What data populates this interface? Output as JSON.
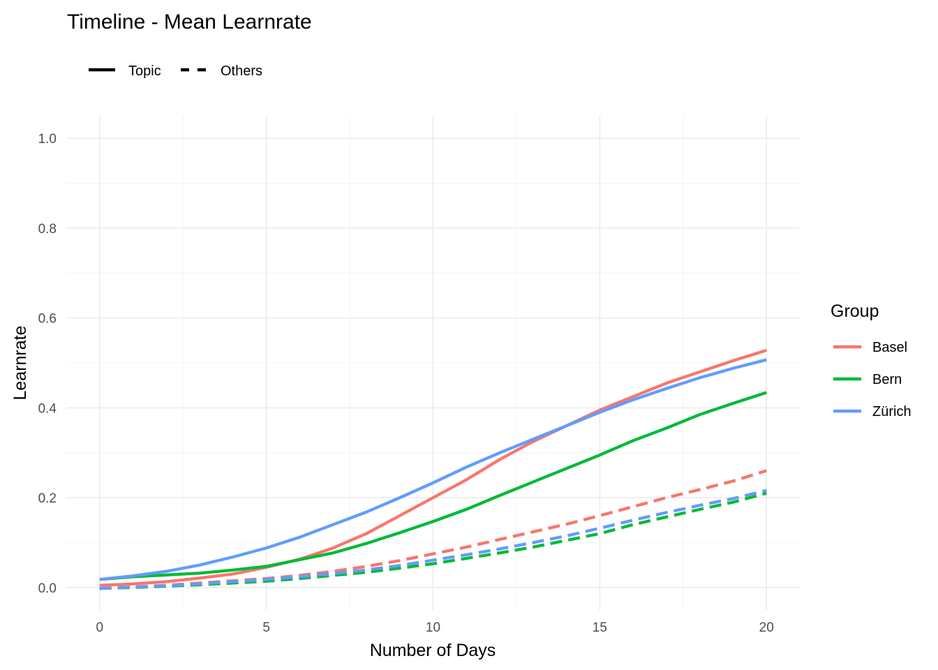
{
  "chart_data": {
    "type": "line",
    "title": "Timeline - Mean Learnrate",
    "xlabel": "Number of Days",
    "ylabel": "Learnrate",
    "xlim": [
      -1,
      21
    ],
    "ylim": [
      -0.05,
      1.05
    ],
    "x_ticks": [
      0,
      5,
      10,
      15,
      20
    ],
    "x_tick_labels": [
      "0",
      "5",
      "10",
      "15",
      "20"
    ],
    "y_ticks": [
      0.0,
      0.2,
      0.4,
      0.6,
      0.8,
      1.0
    ],
    "y_tick_labels": [
      "0.0",
      "0.2",
      "0.4",
      "0.6",
      "0.8",
      "1.0"
    ],
    "grid": true,
    "linetype_legend": {
      "position": "top-left",
      "entries": [
        {
          "label": "Topic",
          "dash": "solid"
        },
        {
          "label": "Others",
          "dash": "dashed"
        }
      ]
    },
    "color_legend": {
      "title": "Group",
      "position": "right",
      "entries": [
        {
          "label": "Basel",
          "color": "#F8766D"
        },
        {
          "label": "Bern",
          "color": "#00BA38"
        },
        {
          "label": "Zürich",
          "color": "#619CFF"
        }
      ]
    },
    "x": [
      0,
      1,
      2,
      3,
      4,
      5,
      6,
      7,
      8,
      9,
      10,
      11,
      12,
      13,
      14,
      15,
      16,
      17,
      18,
      19,
      20
    ],
    "series": [
      {
        "group": "Basel",
        "type": "Topic",
        "color": "#F8766D",
        "dash": "solid",
        "values": [
          0.005,
          0.008,
          0.013,
          0.021,
          0.03,
          0.045,
          0.063,
          0.088,
          0.12,
          0.16,
          0.2,
          0.24,
          0.285,
          0.325,
          0.36,
          0.395,
          0.425,
          0.455,
          0.48,
          0.505,
          0.528
        ]
      },
      {
        "group": "Bern",
        "type": "Topic",
        "color": "#00BA38",
        "dash": "solid",
        "values": [
          0.018,
          0.024,
          0.028,
          0.032,
          0.039,
          0.047,
          0.062,
          0.077,
          0.098,
          0.122,
          0.147,
          0.174,
          0.205,
          0.235,
          0.265,
          0.295,
          0.327,
          0.355,
          0.385,
          0.41,
          0.434
        ]
      },
      {
        "group": "Zürich",
        "type": "Topic",
        "color": "#619CFF",
        "dash": "solid",
        "values": [
          0.018,
          0.026,
          0.036,
          0.05,
          0.068,
          0.088,
          0.112,
          0.14,
          0.168,
          0.2,
          0.233,
          0.268,
          0.3,
          0.33,
          0.36,
          0.39,
          0.418,
          0.443,
          0.467,
          0.488,
          0.507
        ]
      },
      {
        "group": "Basel",
        "type": "Others",
        "color": "#F8766D",
        "dash": "dashed",
        "values": [
          -0.002,
          0.001,
          0.005,
          0.01,
          0.015,
          0.02,
          0.027,
          0.036,
          0.047,
          0.06,
          0.075,
          0.09,
          0.107,
          0.124,
          0.141,
          0.16,
          0.18,
          0.2,
          0.218,
          0.237,
          0.26
        ]
      },
      {
        "group": "Bern",
        "type": "Others",
        "color": "#00BA38",
        "dash": "dashed",
        "values": [
          -0.002,
          0.0,
          0.003,
          0.006,
          0.01,
          0.014,
          0.02,
          0.027,
          0.034,
          0.043,
          0.053,
          0.065,
          0.077,
          0.09,
          0.105,
          0.12,
          0.14,
          0.157,
          0.174,
          0.19,
          0.21
        ]
      },
      {
        "group": "Zürich",
        "type": "Others",
        "color": "#619CFF",
        "dash": "dashed",
        "values": [
          -0.002,
          0.001,
          0.004,
          0.008,
          0.013,
          0.018,
          0.024,
          0.031,
          0.039,
          0.049,
          0.061,
          0.073,
          0.086,
          0.1,
          0.115,
          0.132,
          0.15,
          0.167,
          0.183,
          0.198,
          0.216
        ]
      }
    ]
  }
}
